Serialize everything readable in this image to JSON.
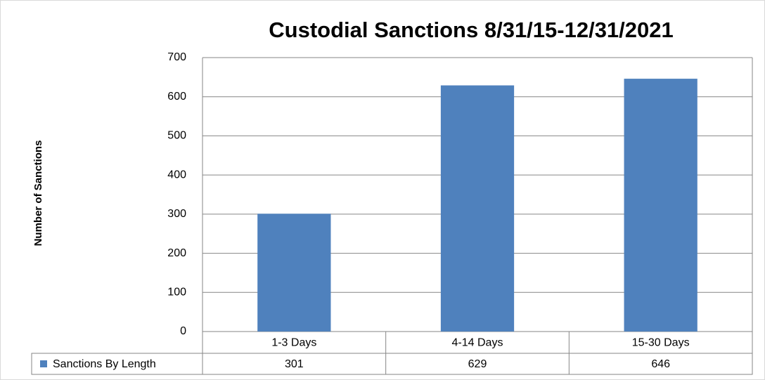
{
  "chart_data": {
    "type": "bar",
    "title": "Custodial Sanctions 8/31/15-12/31/2021",
    "y_label": "Number of Sanctions",
    "categories": [
      "1-3 Days",
      "4-14 Days",
      "15-30 Days"
    ],
    "series": [
      {
        "name": "Sanctions By Length",
        "color": "#4f81bd",
        "values": [
          301,
          629,
          646
        ]
      }
    ],
    "ylim": [
      0,
      700
    ],
    "yticks": [
      0,
      100,
      200,
      300,
      400,
      500,
      600,
      700
    ],
    "grid": true
  }
}
